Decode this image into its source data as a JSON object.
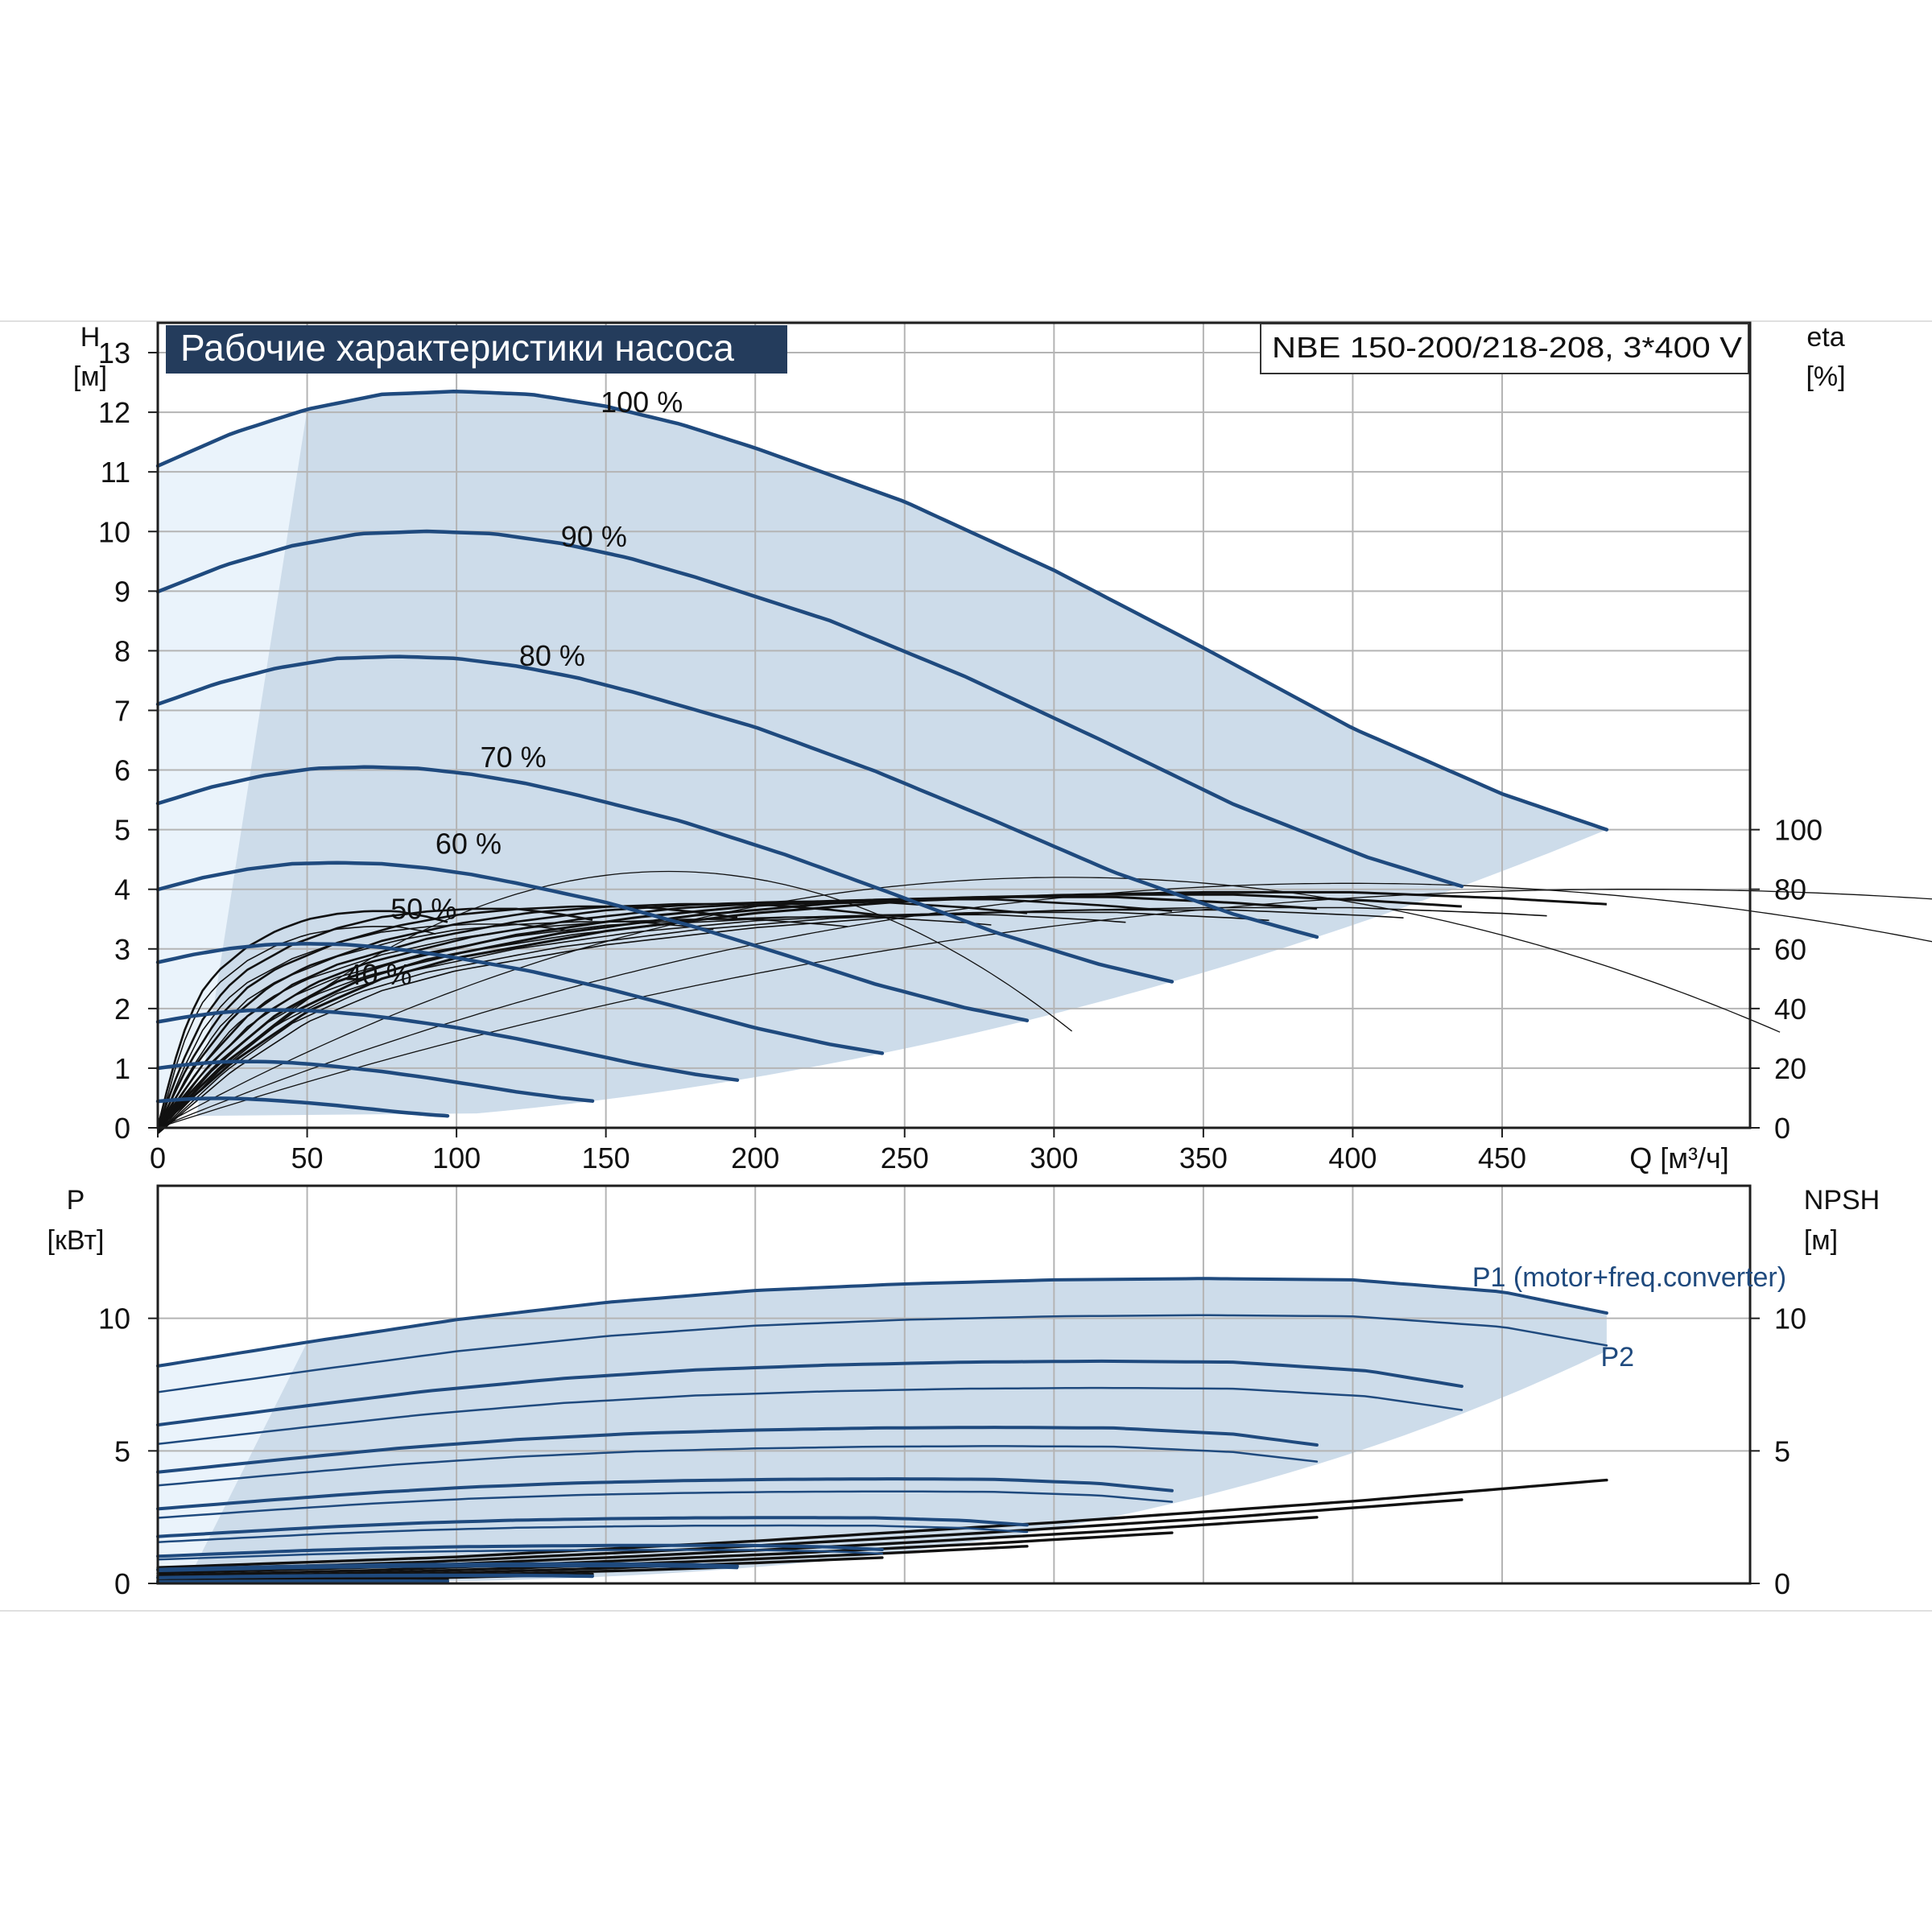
{
  "colors": {
    "background": "#ffffff",
    "grid": "#b4b4b4",
    "frame": "#1e1e1e",
    "curve": "#1f4a7e",
    "efficiency": "#111111",
    "band": "#cddcea",
    "band_light": "#eaf3fb",
    "title_bg": "#243c5c",
    "title_fg": "#ffffff"
  },
  "title": "Рабочие характеристики насоса",
  "model": "NBE 150-200/218-208, 3*400 V",
  "chart_data": [
    {
      "type": "line",
      "name": "head",
      "xlabel": "Q [м³/ч]",
      "ylabel_left": [
        "H",
        "[м]"
      ],
      "ylabel_right": [
        "eta",
        "[%]"
      ],
      "xlim": [
        0,
        533
      ],
      "ylim": [
        0,
        13.5
      ],
      "x_ticks": [
        "0",
        "50",
        "100",
        "150",
        "200",
        "250",
        "300",
        "350",
        "400",
        "450"
      ],
      "y_ticks": [
        "0",
        "1",
        "2",
        "3",
        "4",
        "5",
        "6",
        "7",
        "8",
        "9",
        "10",
        "11",
        "12",
        "13"
      ],
      "eta_ticks": [
        "0",
        "20",
        "40",
        "60",
        "80",
        "100"
      ],
      "eta_range": [
        0,
        100
      ],
      "grid": true,
      "speed_curves": [
        {
          "label": "100 %",
          "speed": 1.0,
          "label_q": 162,
          "label_h": 12.0
        },
        {
          "label": "90 %",
          "speed": 0.9,
          "label_q": 146,
          "label_h": 9.75
        },
        {
          "label": "80 %",
          "speed": 0.8,
          "label_q": 132,
          "label_h": 7.75
        },
        {
          "label": "70 %",
          "speed": 0.7,
          "label_q": 119,
          "label_h": 6.05
        },
        {
          "label": "60 %",
          "speed": 0.6,
          "label_q": 104,
          "label_h": 4.6
        },
        {
          "label": "50 %",
          "speed": 0.5,
          "label_q": 89,
          "label_h": 3.5
        },
        {
          "label": "40 %",
          "speed": 0.4,
          "label_q": 74,
          "label_h": 2.4
        },
        {
          "label": "",
          "speed": 0.3,
          "label_q": 0,
          "label_h": 0
        },
        {
          "label": "",
          "speed": 0.2,
          "label_q": 0,
          "label_h": 0
        }
      ],
      "base_head_curve": {
        "q": [
          0,
          25,
          50,
          75,
          100,
          125,
          150,
          175,
          200,
          250,
          300,
          350,
          400,
          450,
          485
        ],
        "h": [
          11.1,
          11.65,
          12.05,
          12.3,
          12.35,
          12.3,
          12.1,
          11.8,
          11.4,
          10.5,
          9.35,
          8.05,
          6.7,
          5.6,
          5.0
        ]
      },
      "base_eta_curve": {
        "q": [
          0,
          25,
          50,
          75,
          100,
          150,
          200,
          250,
          300,
          350,
          400,
          450,
          485
        ],
        "eta": [
          0,
          22,
          39,
          50,
          57,
          66,
          72,
          76,
          78,
          79,
          79,
          77,
          75
        ]
      }
    },
    {
      "type": "line",
      "name": "power",
      "ylabel_left": [
        "P",
        "[кВт]"
      ],
      "ylabel_right": [
        "NPSH",
        "[м]"
      ],
      "xlim": [
        0,
        533
      ],
      "ylim": [
        0,
        15
      ],
      "y_ticks": [
        "0",
        "5",
        "10"
      ],
      "npsh_ticks": [
        "0",
        "5",
        "10"
      ],
      "series": [
        {
          "name": "P1 (motor+freq.converter)",
          "label_q": 440,
          "label_p": 11.2
        },
        {
          "name": "P2",
          "label_q": 483,
          "label_p": 8.2
        }
      ],
      "p1_curve": {
        "q": [
          0,
          50,
          100,
          150,
          200,
          250,
          300,
          350,
          400,
          450,
          485
        ],
        "p": [
          8.2,
          9.1,
          9.95,
          10.6,
          11.05,
          11.3,
          11.45,
          11.5,
          11.45,
          11.0,
          10.2
        ]
      },
      "p2_ratio": 0.88,
      "npsh_curve": {
        "q": [
          0,
          100,
          200,
          300,
          400,
          485
        ],
        "npsh": [
          0.6,
          1.0,
          1.6,
          2.3,
          3.1,
          3.9
        ]
      }
    }
  ]
}
